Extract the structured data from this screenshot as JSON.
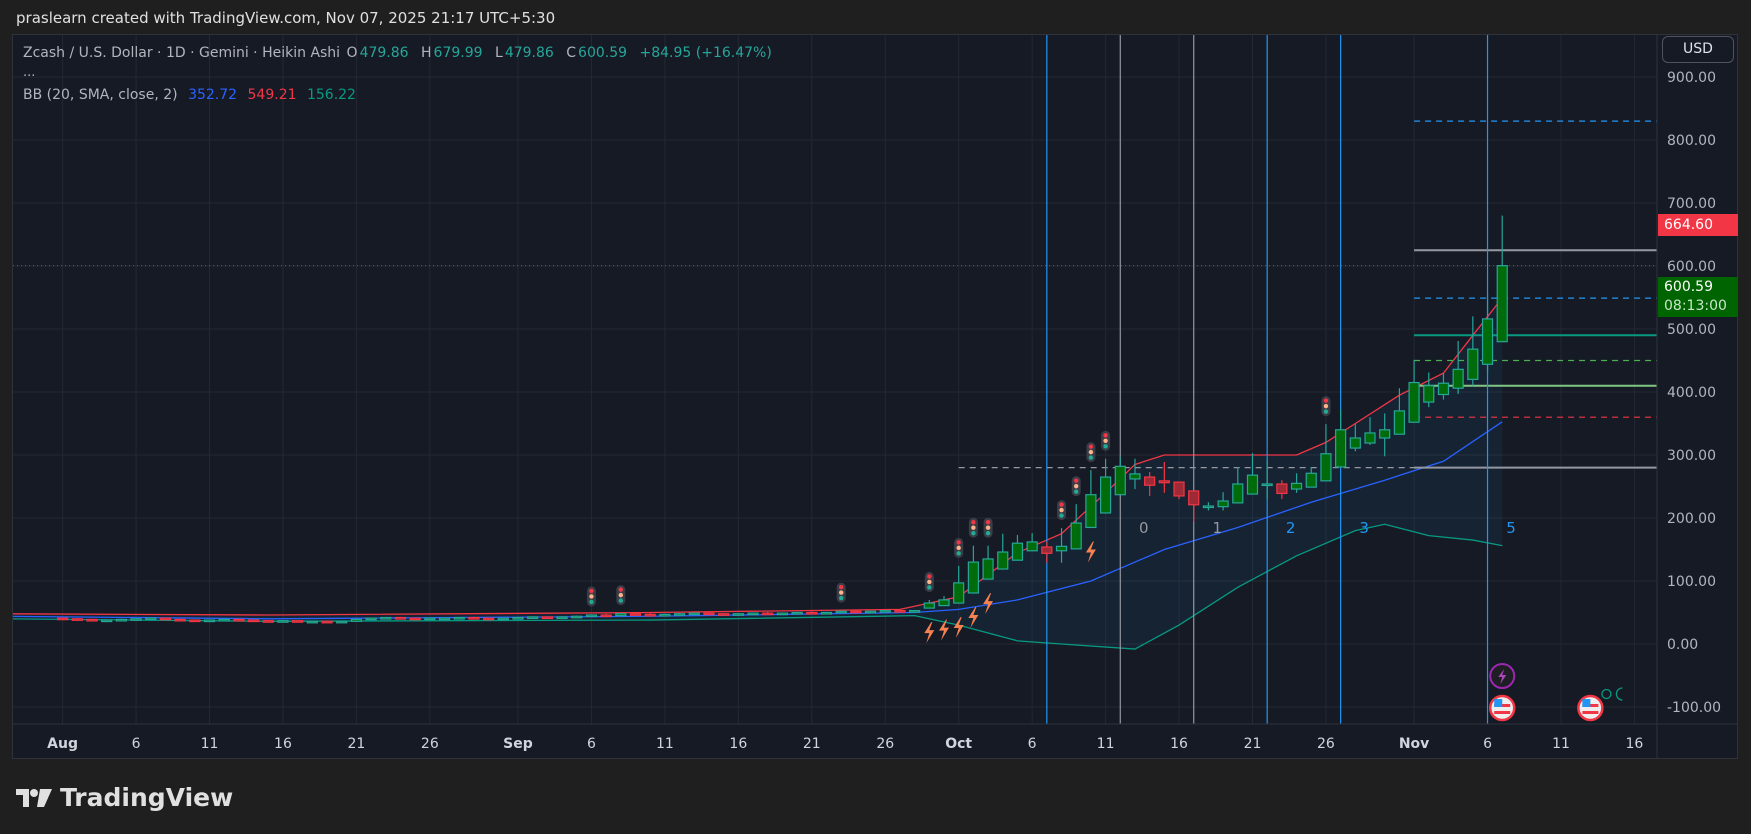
{
  "credit": "praslearn created with TradingView.com, Nov 07, 2025 21:17 UTC+5:30",
  "legend": {
    "symbol": "Zcash / U.S. Dollar · 1D · Gemini · Heikin Ashi",
    "o_label": "O",
    "o": "479.86",
    "h_label": "H",
    "h": "679.99",
    "l_label": "L",
    "l": "479.86",
    "c_label": "C",
    "c": "600.59",
    "change": "+84.95 (+16.47%)",
    "more": "...",
    "bb_label": "BB (20, SMA, close, 2)",
    "bb_basis": "352.72",
    "bb_upper": "549.21",
    "bb_lower": "156.22"
  },
  "currency_button": "USD",
  "price_tags": {
    "high_marker": "664.60",
    "last_price": "600.59",
    "countdown": "08:13:00"
  },
  "colors": {
    "up_fill": "#006b0a",
    "up_border": "#26a69a",
    "down_fill": "#9e2a36",
    "down_border": "#f23645",
    "bb_upper": "#f23645",
    "bb_basis": "#2962ff",
    "bb_lower": "#089981",
    "grid": "#242833",
    "axis_text": "#b2b5be"
  },
  "logo_text": "TradingView",
  "chart_data": {
    "type": "candlestick",
    "title": "Zcash / U.S. Dollar · 1D · Gemini · Heikin Ashi",
    "ylim": [
      -120,
      960
    ],
    "y_ticks": [
      "900.00",
      "800.00",
      "700.00",
      "600.00",
      "500.00",
      "400.00",
      "300.00",
      "200.00",
      "100.00",
      "0.00",
      "-100.00"
    ],
    "y_tick_values": [
      900,
      800,
      700,
      600,
      500,
      400,
      300,
      200,
      100,
      0,
      -100
    ],
    "x_range": [
      "2025-07-28",
      "2025-11-19"
    ],
    "x_ticks": [
      {
        "label": "Aug",
        "date": "2025-08-01",
        "bold": true
      },
      {
        "label": "6",
        "date": "2025-08-06"
      },
      {
        "label": "11",
        "date": "2025-08-11"
      },
      {
        "label": "16",
        "date": "2025-08-16"
      },
      {
        "label": "21",
        "date": "2025-08-21"
      },
      {
        "label": "26",
        "date": "2025-08-26"
      },
      {
        "label": "Sep",
        "date": "2025-09-01",
        "bold": true
      },
      {
        "label": "6",
        "date": "2025-09-06"
      },
      {
        "label": "11",
        "date": "2025-09-11"
      },
      {
        "label": "16",
        "date": "2025-09-16"
      },
      {
        "label": "21",
        "date": "2025-09-21"
      },
      {
        "label": "26",
        "date": "2025-09-26"
      },
      {
        "label": "Oct",
        "date": "2025-10-01",
        "bold": true
      },
      {
        "label": "6",
        "date": "2025-10-06"
      },
      {
        "label": "11",
        "date": "2025-10-11"
      },
      {
        "label": "16",
        "date": "2025-10-16"
      },
      {
        "label": "21",
        "date": "2025-10-21"
      },
      {
        "label": "26",
        "date": "2025-10-26"
      },
      {
        "label": "Nov",
        "date": "2025-11-01",
        "bold": true
      },
      {
        "label": "6",
        "date": "2025-11-06"
      },
      {
        "label": "11",
        "date": "2025-11-11"
      },
      {
        "label": "16",
        "date": "2025-11-16"
      }
    ],
    "candles_start": "2025-08-01",
    "candles_ohlc": [
      [
        41,
        42,
        39,
        40
      ],
      [
        40,
        41,
        38,
        39
      ],
      [
        39,
        40,
        37,
        38
      ],
      [
        38,
        39,
        36,
        38
      ],
      [
        38,
        40,
        37,
        39
      ],
      [
        39,
        41,
        38,
        40
      ],
      [
        40,
        42,
        39,
        41
      ],
      [
        41,
        42,
        38,
        39
      ],
      [
        39,
        40,
        37,
        38
      ],
      [
        38,
        39,
        36,
        37
      ],
      [
        37,
        39,
        36,
        38
      ],
      [
        38,
        40,
        37,
        39
      ],
      [
        39,
        40,
        37,
        38
      ],
      [
        38,
        39,
        36,
        37
      ],
      [
        37,
        38,
        35,
        36
      ],
      [
        36,
        38,
        35,
        37
      ],
      [
        37,
        38,
        35,
        36
      ],
      [
        36,
        37,
        35,
        36
      ],
      [
        36,
        37,
        34,
        35
      ],
      [
        35,
        37,
        34,
        36
      ],
      [
        36,
        40,
        35,
        39
      ],
      [
        39,
        42,
        38,
        41
      ],
      [
        41,
        43,
        40,
        42
      ],
      [
        42,
        43,
        40,
        41
      ],
      [
        41,
        42,
        39,
        40
      ],
      [
        40,
        42,
        39,
        41
      ],
      [
        41,
        42,
        40,
        41
      ],
      [
        41,
        43,
        40,
        42
      ],
      [
        42,
        43,
        40,
        41
      ],
      [
        41,
        42,
        39,
        40
      ],
      [
        40,
        42,
        39,
        41
      ],
      [
        41,
        43,
        40,
        42
      ],
      [
        42,
        44,
        41,
        43
      ],
      [
        43,
        44,
        41,
        42
      ],
      [
        42,
        44,
        41,
        43
      ],
      [
        43,
        45,
        42,
        44
      ],
      [
        44,
        47,
        43,
        46
      ],
      [
        46,
        48,
        44,
        45
      ],
      [
        45,
        49,
        44,
        48
      ],
      [
        48,
        50,
        46,
        47
      ],
      [
        47,
        49,
        45,
        46
      ],
      [
        46,
        48,
        45,
        47
      ],
      [
        47,
        49,
        46,
        48
      ],
      [
        48,
        50,
        47,
        49
      ],
      [
        49,
        50,
        47,
        48
      ],
      [
        48,
        49,
        46,
        47
      ],
      [
        47,
        49,
        46,
        48
      ],
      [
        48,
        50,
        47,
        49
      ],
      [
        49,
        51,
        47,
        48
      ],
      [
        48,
        50,
        47,
        49
      ],
      [
        49,
        51,
        48,
        50
      ],
      [
        50,
        52,
        48,
        49
      ],
      [
        49,
        51,
        48,
        50
      ],
      [
        50,
        53,
        49,
        52
      ],
      [
        52,
        54,
        50,
        51
      ],
      [
        51,
        53,
        50,
        52
      ],
      [
        52,
        54,
        51,
        53
      ],
      [
        53,
        55,
        51,
        52
      ],
      [
        52,
        54,
        51,
        53
      ],
      [
        57,
        70,
        57,
        65
      ],
      [
        61,
        76,
        61,
        70
      ],
      [
        65,
        124,
        65,
        97
      ],
      [
        81,
        156,
        81,
        130
      ],
      [
        103,
        156,
        103,
        135
      ],
      [
        119,
        175,
        119,
        146
      ],
      [
        133,
        173,
        133,
        160
      ],
      [
        148,
        176,
        148,
        162
      ],
      [
        154,
        162,
        129,
        144
      ],
      [
        148,
        184,
        129,
        155
      ],
      [
        151,
        222,
        151,
        192
      ],
      [
        185,
        276,
        185,
        237
      ],
      [
        208,
        294,
        208,
        265
      ],
      [
        237,
        297,
        237,
        282
      ],
      [
        262,
        294,
        246,
        270
      ],
      [
        265,
        273,
        235,
        252
      ],
      [
        259,
        289,
        240,
        256
      ],
      [
        257,
        257,
        230,
        235
      ],
      [
        243,
        243,
        194,
        221
      ],
      [
        219,
        225,
        212,
        219
      ],
      [
        218,
        241,
        212,
        227
      ],
      [
        224,
        281,
        224,
        254
      ],
      [
        238,
        303,
        238,
        268
      ],
      [
        254,
        293,
        230,
        254
      ],
      [
        254,
        260,
        230,
        239
      ],
      [
        246,
        271,
        240,
        255
      ],
      [
        249,
        281,
        249,
        271
      ],
      [
        259,
        349,
        259,
        302
      ],
      [
        281,
        372,
        281,
        340
      ],
      [
        311,
        349,
        306,
        327
      ],
      [
        319,
        360,
        316,
        335
      ],
      [
        327,
        366,
        298,
        340
      ],
      [
        333,
        406,
        333,
        370
      ],
      [
        352,
        451,
        352,
        415
      ],
      [
        384,
        431,
        376,
        410
      ],
      [
        396,
        430,
        388,
        414
      ],
      [
        406,
        481,
        397,
        436
      ],
      [
        420,
        520,
        410,
        468
      ],
      [
        444,
        555,
        430,
        516
      ],
      [
        479.86,
        679.99,
        479.86,
        600.59
      ]
    ],
    "bollinger_bands": {
      "upper": [
        [
          "2025-07-28",
          48
        ],
        [
          "2025-08-15",
          46
        ],
        [
          "2025-09-10",
          50
        ],
        [
          "2025-09-27",
          55
        ],
        [
          "2025-10-01",
          75
        ],
        [
          "2025-10-05",
          145
        ],
        [
          "2025-10-08",
          175
        ],
        [
          "2025-10-11",
          240
        ],
        [
          "2025-10-13",
          285
        ],
        [
          "2025-10-15",
          300
        ],
        [
          "2025-10-20",
          300
        ],
        [
          "2025-10-24",
          300
        ],
        [
          "2025-10-26",
          320
        ],
        [
          "2025-10-28",
          350
        ],
        [
          "2025-10-31",
          395
        ],
        [
          "2025-11-03",
          430
        ],
        [
          "2025-11-05",
          490
        ],
        [
          "2025-11-07",
          549.21
        ]
      ],
      "basis": [
        [
          "2025-07-28",
          44
        ],
        [
          "2025-08-15",
          40
        ],
        [
          "2025-09-10",
          44
        ],
        [
          "2025-09-28",
          50
        ],
        [
          "2025-10-01",
          55
        ],
        [
          "2025-10-05",
          70
        ],
        [
          "2025-10-10",
          100
        ],
        [
          "2025-10-15",
          150
        ],
        [
          "2025-10-20",
          185
        ],
        [
          "2025-10-25",
          225
        ],
        [
          "2025-10-30",
          260
        ],
        [
          "2025-11-03",
          290
        ],
        [
          "2025-11-07",
          352.72
        ]
      ],
      "lower": [
        [
          "2025-07-28",
          40
        ],
        [
          "2025-08-15",
          36
        ],
        [
          "2025-09-10",
          38
        ],
        [
          "2025-09-28",
          45
        ],
        [
          "2025-10-01",
          30
        ],
        [
          "2025-10-05",
          5
        ],
        [
          "2025-10-08",
          0
        ],
        [
          "2025-10-13",
          -8
        ],
        [
          "2025-10-16",
          30
        ],
        [
          "2025-10-20",
          90
        ],
        [
          "2025-10-24",
          140
        ],
        [
          "2025-10-28",
          180
        ],
        [
          "2025-10-30",
          190
        ],
        [
          "2025-11-02",
          172
        ],
        [
          "2025-11-05",
          165
        ],
        [
          "2025-11-07",
          156.22
        ]
      ]
    },
    "signal_markers_above": [
      "2025-09-06",
      "2025-09-08",
      "2025-09-23",
      "2025-09-29",
      "2025-10-01",
      "2025-10-02",
      "2025-10-03",
      "2025-10-08",
      "2025-10-09",
      "2025-10-10",
      "2025-10-11",
      "2025-10-26"
    ],
    "lightning_markers_below": [
      "2025-09-29",
      "2025-09-30",
      "2025-10-01",
      "2025-10-02",
      "2025-10-03",
      "2025-10-10"
    ],
    "vertical_lines": [
      {
        "date": "2025-10-07",
        "color": "#2196f3"
      },
      {
        "date": "2025-10-12",
        "color": "#9598a1"
      },
      {
        "date": "2025-10-17",
        "color": "#9598a1"
      },
      {
        "date": "2025-10-22",
        "color": "#2196f3"
      },
      {
        "date": "2025-10-27",
        "color": "#2196f3"
      },
      {
        "date": "2025-11-06",
        "color": "#2196f3"
      }
    ],
    "time_zone_labels": [
      {
        "text": "0",
        "date": "2025-10-13.6",
        "color": "#9598a1"
      },
      {
        "text": "1",
        "date": "2025-10-18.6",
        "color": "#9598a1"
      },
      {
        "text": "2",
        "date": "2025-10-23.6",
        "color": "#2196f3"
      },
      {
        "text": "3",
        "date": "2025-10-28.6",
        "color": "#2196f3"
      },
      {
        "text": "5",
        "date": "2025-11-07.6",
        "color": "#2196f3"
      }
    ],
    "horizontal_levels": [
      {
        "price": 280,
        "from": "2025-10-01",
        "to": "2025-11-01",
        "style": "dashed",
        "color": "#9598a1"
      },
      {
        "price": 280,
        "from": "2025-11-01",
        "to": "end",
        "style": "solid",
        "color": "#9598a1"
      },
      {
        "price": 830,
        "from": "2025-11-01",
        "to": "end",
        "style": "dashed",
        "color": "#2196f3"
      },
      {
        "price": 625,
        "from": "2025-11-01",
        "to": "end",
        "style": "solid",
        "color": "#9598a1"
      },
      {
        "price": 549,
        "from": "2025-11-01",
        "to": "end",
        "style": "dashed",
        "color": "#2196f3"
      },
      {
        "price": 490,
        "from": "2025-11-01",
        "to": "end",
        "style": "solid",
        "color": "#089981"
      },
      {
        "price": 450,
        "from": "2025-11-01",
        "to": "end",
        "style": "dashed",
        "color": "#4caf50"
      },
      {
        "price": 410,
        "from": "2025-11-01",
        "to": "end",
        "style": "solid",
        "color": "#81c784"
      },
      {
        "price": 360,
        "from": "2025-11-01",
        "to": "end",
        "style": "dashed",
        "color": "#f23645"
      }
    ],
    "last_price_line": 600.59,
    "events": [
      {
        "type": "lightning",
        "date": "2025-11-07"
      },
      {
        "type": "us-flag",
        "date": "2025-11-07"
      },
      {
        "type": "us-flag",
        "date": "2025-11-13"
      },
      {
        "type": "sun-moon",
        "date": "2025-11-14.5"
      }
    ]
  }
}
